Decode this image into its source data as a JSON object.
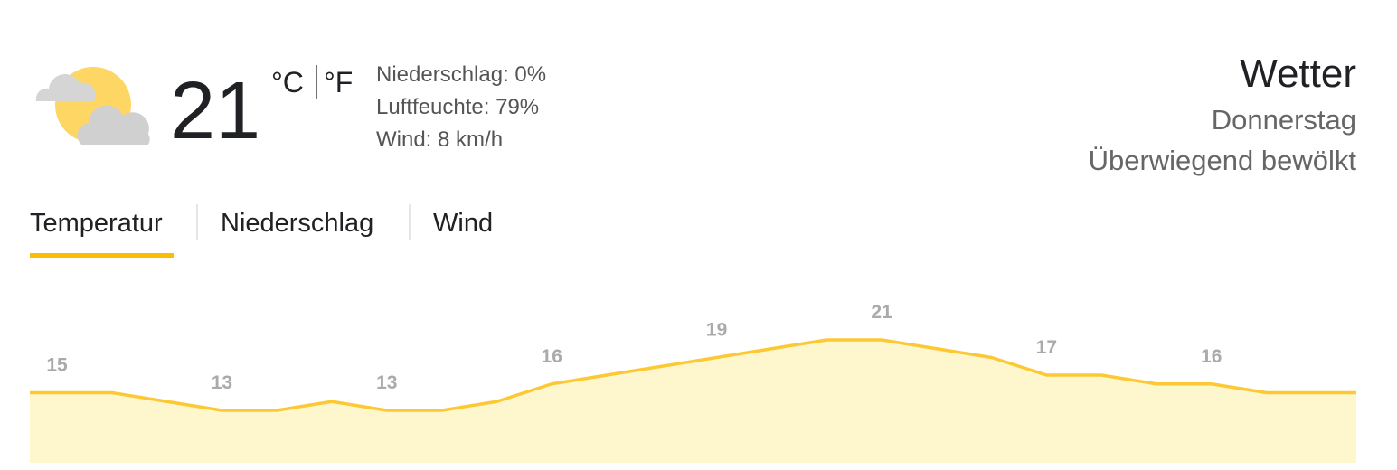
{
  "current": {
    "temperature": 21,
    "unit_celsius": "°C",
    "unit_fahrenheit": "°F",
    "details": [
      "Niederschlag: 0%",
      "Luftfeuchte: 79%",
      "Wind: 8 km/h"
    ]
  },
  "header": {
    "title": "Wetter",
    "day": "Donnerstag",
    "condition": "Überwiegend bewölkt"
  },
  "tabs": [
    "Temperatur",
    "Niederschlag",
    "Wind"
  ],
  "chart_data": {
    "type": "area",
    "values": [
      15,
      15,
      14,
      13,
      13,
      14,
      13,
      13,
      14,
      16,
      17,
      18,
      19,
      20,
      21,
      21,
      20,
      19,
      17,
      17,
      16,
      16,
      15,
      15
    ],
    "color": "#fcc934",
    "fill": "#fef7cd"
  }
}
